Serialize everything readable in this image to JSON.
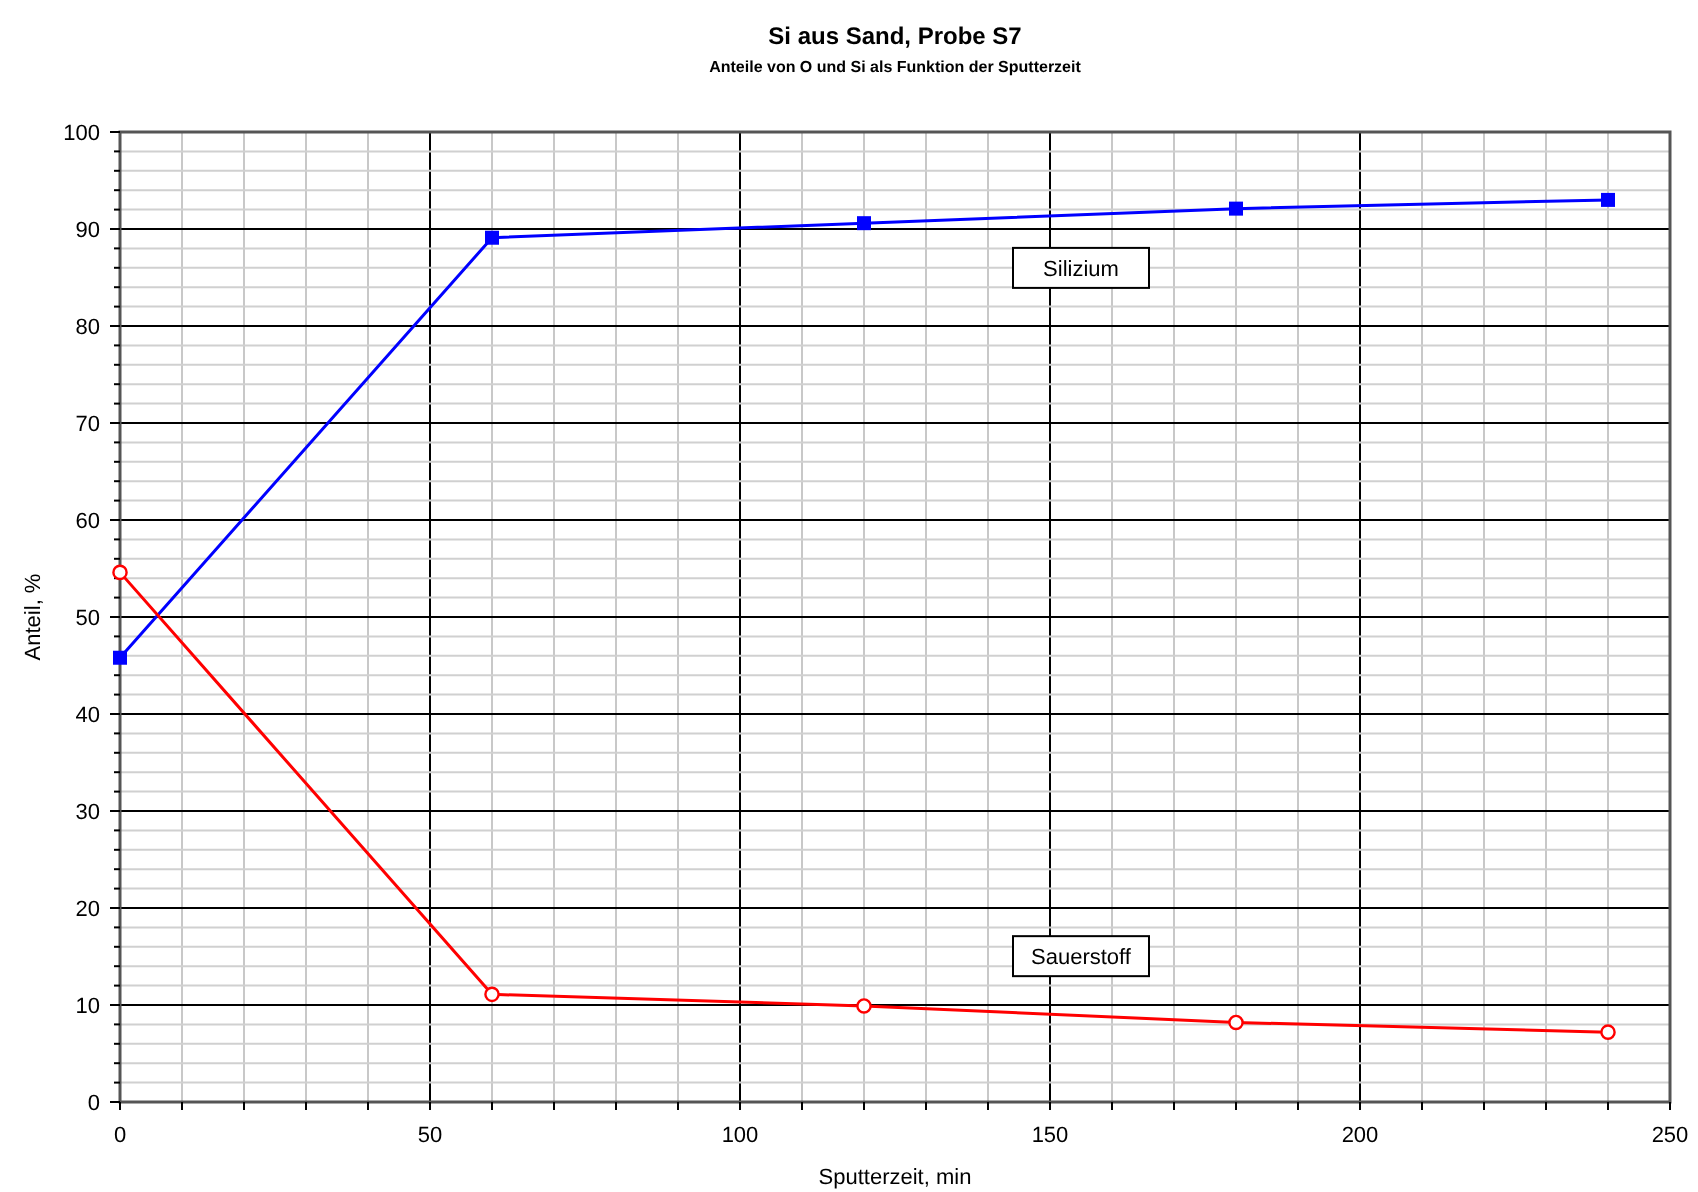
{
  "chart_data": {
    "type": "line",
    "title": "Si aus Sand, Probe S7",
    "subtitle": "Anteile von O und Si als Funktion der Sputterzeit",
    "xlabel": "Sputterzeit, min",
    "ylabel": "Anteil, %",
    "xlim": [
      0,
      250
    ],
    "ylim": [
      0,
      100
    ],
    "xticks": [
      0,
      {
        "value": 10,
        "label": null
      },
      {
        "value": 20,
        "label": null
      },
      {
        "value": 30,
        "label": null
      },
      {
        "value": 40,
        "label": null
      },
      50,
      {
        "value": 60,
        "label": null
      },
      {
        "value": 70,
        "label": null
      },
      {
        "value": 80,
        "label": null
      },
      {
        "value": 90,
        "label": null
      },
      100,
      {
        "value": 110,
        "label": null
      },
      {
        "value": 120,
        "label": null
      },
      {
        "value": 130,
        "label": null
      },
      {
        "value": 140,
        "label": null
      },
      150,
      {
        "value": 160,
        "label": null
      },
      {
        "value": 170,
        "label": null
      },
      {
        "value": 180,
        "label": null
      },
      {
        "value": 190,
        "label": null
      },
      200,
      {
        "value": 210,
        "label": null
      },
      {
        "value": 220,
        "label": null
      },
      {
        "value": 230,
        "label": null
      },
      {
        "value": 240,
        "label": null
      },
      250
    ],
    "yticks": [
      0,
      {
        "value": 2,
        "label": null
      },
      {
        "value": 4,
        "label": null
      },
      {
        "value": 6,
        "label": null
      },
      {
        "value": 8,
        "label": null
      },
      10,
      {
        "value": 12,
        "label": null
      },
      {
        "value": 14,
        "label": null
      },
      {
        "value": 16,
        "label": null
      },
      {
        "value": 18,
        "label": null
      },
      20,
      {
        "value": 22,
        "label": null
      },
      {
        "value": 24,
        "label": null
      },
      {
        "value": 26,
        "label": null
      },
      {
        "value": 28,
        "label": null
      },
      30,
      {
        "value": 32,
        "label": null
      },
      {
        "value": 34,
        "label": null
      },
      {
        "value": 36,
        "label": null
      },
      {
        "value": 38,
        "label": null
      },
      40,
      {
        "value": 42,
        "label": null
      },
      {
        "value": 44,
        "label": null
      },
      {
        "value": 46,
        "label": null
      },
      {
        "value": 48,
        "label": null
      },
      50,
      {
        "value": 52,
        "label": null
      },
      {
        "value": 54,
        "label": null
      },
      {
        "value": 56,
        "label": null
      },
      {
        "value": 58,
        "label": null
      },
      60,
      {
        "value": 62,
        "label": null
      },
      {
        "value": 64,
        "label": null
      },
      {
        "value": 66,
        "label": null
      },
      {
        "value": 68,
        "label": null
      },
      70,
      {
        "value": 72,
        "label": null
      },
      {
        "value": 74,
        "label": null
      },
      {
        "value": 76,
        "label": null
      },
      {
        "value": 78,
        "label": null
      },
      80,
      {
        "value": 82,
        "label": null
      },
      {
        "value": 84,
        "label": null
      },
      {
        "value": 86,
        "label": null
      },
      {
        "value": 88,
        "label": null
      },
      90,
      {
        "value": 92,
        "label": null
      },
      {
        "value": 94,
        "label": null
      },
      {
        "value": 96,
        "label": null
      },
      {
        "value": 98,
        "label": null
      },
      100
    ],
    "grid": true,
    "line_style": "solid",
    "x": [
      0,
      60,
      120,
      180,
      240
    ],
    "series": [
      {
        "name": "Silizium",
        "color": "#0000ff",
        "marker": "square",
        "values": [
          45.8,
          89.1,
          90.6,
          92.1,
          93.0
        ]
      },
      {
        "name": "Sauerstoff",
        "color": "#ff0000",
        "marker": "circle",
        "values": [
          54.6,
          11.1,
          9.9,
          8.2,
          7.2
        ]
      }
    ]
  }
}
